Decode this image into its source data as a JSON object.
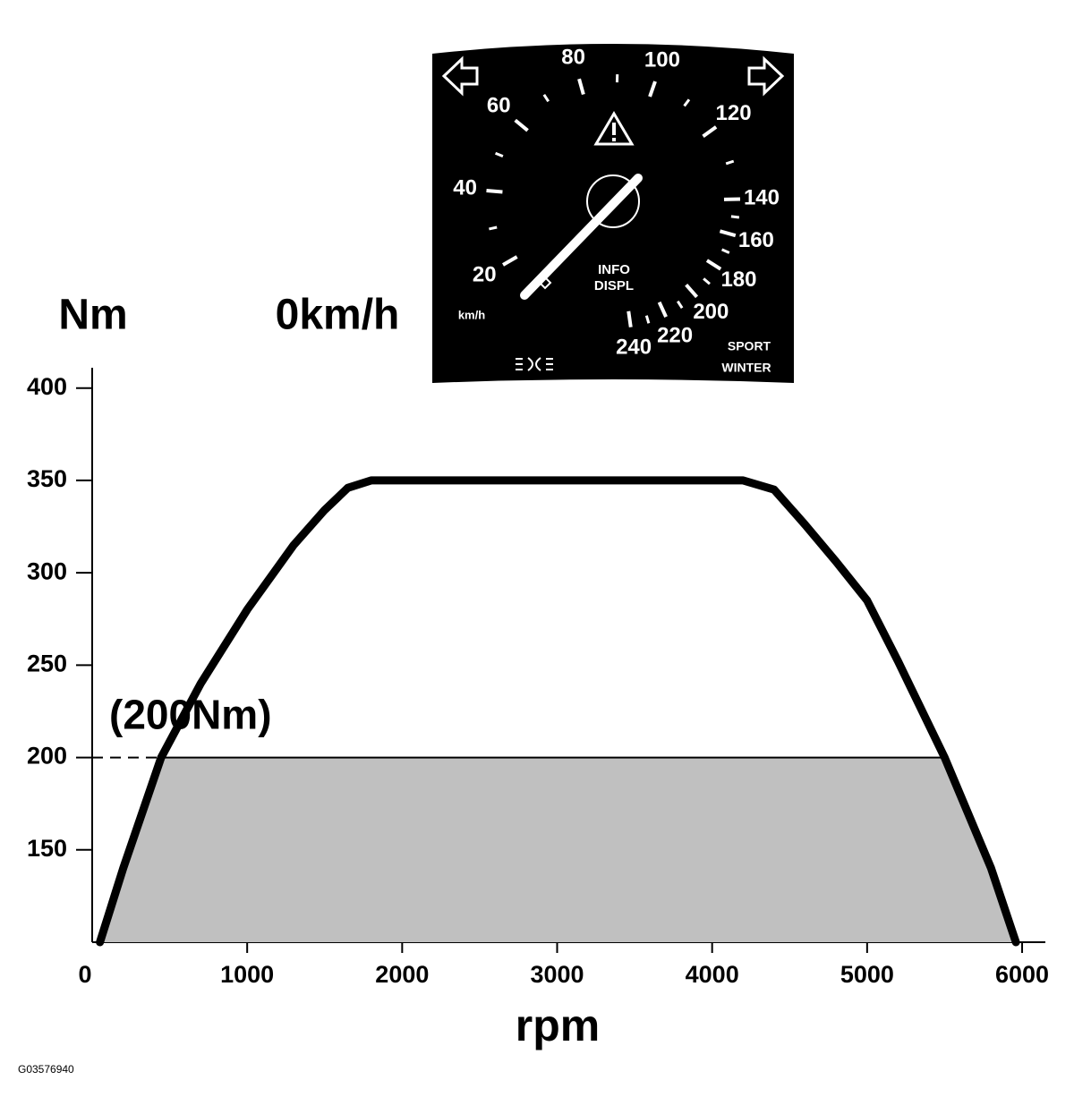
{
  "chart_data": {
    "type": "line",
    "y_label": "Nm",
    "x_label": "rpm",
    "speed_label": "0km/h",
    "x": [
      50,
      200,
      445,
      700,
      1000,
      1300,
      1500,
      1650,
      1800,
      2000,
      4000,
      4200,
      4400,
      4600,
      4800,
      5000,
      5200,
      5500,
      5800,
      5960
    ],
    "values": [
      100,
      140,
      200,
      240,
      280,
      315,
      334,
      346,
      350,
      350,
      350,
      350,
      345,
      326,
      306,
      285,
      252,
      200,
      140,
      100
    ],
    "color": "#000000",
    "fill": "#c0c0c0",
    "threshold": {
      "value": 200,
      "label": "(200Nm)"
    },
    "xlim": [
      0,
      6150
    ],
    "ylim": [
      100,
      411
    ],
    "xticks": [
      0,
      1000,
      2000,
      3000,
      4000,
      5000,
      6000
    ],
    "yticks": [
      150,
      200,
      250,
      300,
      350,
      400
    ]
  },
  "gauge": {
    "ticks": [
      20,
      40,
      60,
      80,
      100,
      120,
      140,
      160,
      180,
      200,
      220,
      240
    ],
    "unit": "km/h",
    "info": [
      "INFO",
      "DISPL"
    ],
    "modes": [
      "SPORT",
      "WINTER"
    ]
  },
  "figure_code": "G03576940"
}
